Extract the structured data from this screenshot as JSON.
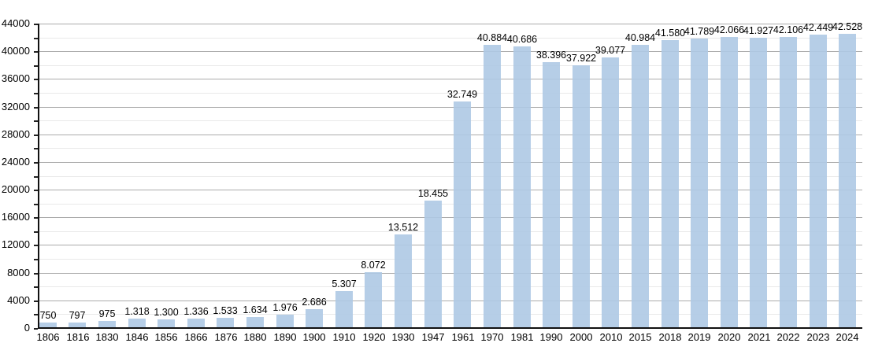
{
  "chart_data": {
    "type": "bar",
    "title": "",
    "xlabel": "",
    "ylabel": "",
    "categories": [
      "1806",
      "1816",
      "1830",
      "1846",
      "1856",
      "1866",
      "1876",
      "1880",
      "1890",
      "1900",
      "1910",
      "1920",
      "1930",
      "1947",
      "1961",
      "1970",
      "1981",
      "1990",
      "2000",
      "2010",
      "2015",
      "2018",
      "2019",
      "2020",
      "2021",
      "2022",
      "2023",
      "2024"
    ],
    "values": [
      750,
      797,
      975,
      1318,
      1300,
      1336,
      1533,
      1634,
      1976,
      2686,
      5307,
      8072,
      13512,
      18455,
      32749,
      40884,
      40686,
      38396,
      37922,
      39077,
      40984,
      41580,
      41789,
      42066,
      41927,
      42106,
      42449,
      42528
    ],
    "value_labels": [
      "750",
      "797",
      "975",
      "1.318",
      "1.300",
      "1.336",
      "1.533",
      "1.634",
      "1.976",
      "2.686",
      "5.307",
      "8.072",
      "13.512",
      "18.455",
      "32.749",
      "40.884",
      "40.686",
      "38.396",
      "37.922",
      "39.077",
      "40.984",
      "41.580",
      "41.789",
      "42.066",
      "41.927",
      "42.106",
      "42.449",
      "42.528"
    ],
    "ylim": [
      0,
      44000
    ],
    "y_major_step": 4000,
    "y_minor_step": 2000,
    "y_tick_labels": [
      "0",
      "4000",
      "8000",
      "12000",
      "16000",
      "20000",
      "24000",
      "28000",
      "32000",
      "36000",
      "40000",
      "44000"
    ],
    "grid": "on",
    "legend": "none",
    "colors": {
      "bar": "#aec9e4",
      "grid_major": "#ababab",
      "grid_minor": "#e9e9e9",
      "axis": "#111111",
      "text": "#000000",
      "background": "#ffffff"
    }
  }
}
